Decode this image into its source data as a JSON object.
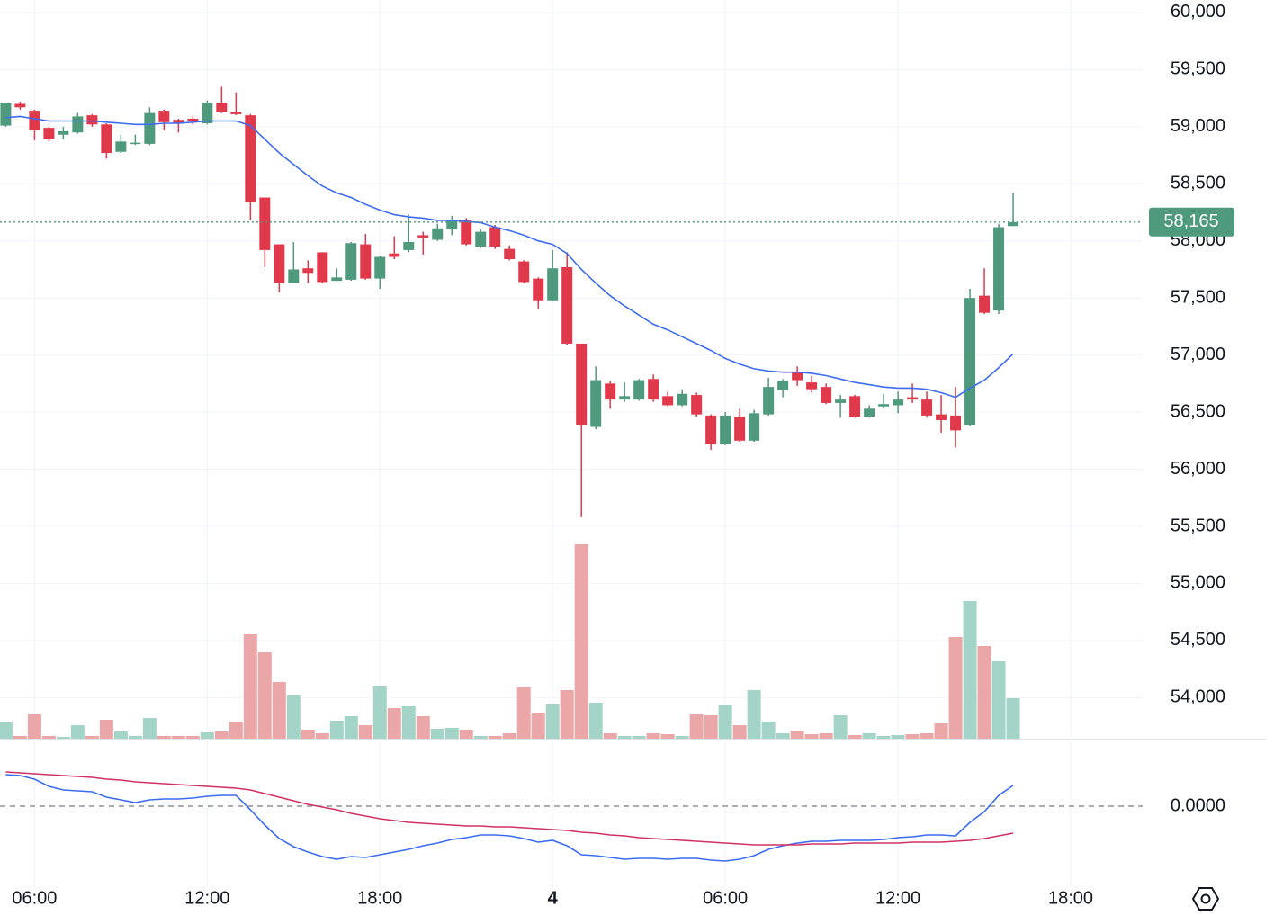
{
  "chart_data": [
    {
      "type": "candlestick",
      "x": [
        5,
        5.5,
        6,
        6.5,
        7,
        7.5,
        8,
        8.5,
        9,
        9.5,
        10,
        10.5,
        11,
        11.5,
        12,
        12.5,
        13,
        13.5,
        14,
        14.5,
        15,
        15.5,
        16,
        16.5,
        17,
        17.5,
        18,
        18.5,
        19,
        19.5,
        20,
        20.5,
        21,
        21.5,
        22,
        22.5,
        23,
        23.5,
        24,
        24.5,
        25,
        25.5,
        26,
        26.5,
        27,
        27.5,
        28,
        28.5,
        29,
        29.5,
        30,
        30.5,
        31,
        31.5,
        32,
        32.5,
        33,
        33.5,
        34,
        34.5,
        35,
        35.5,
        36,
        36.5,
        37,
        37.5,
        38,
        38.5,
        39,
        39.5,
        40
      ],
      "open": [
        59010,
        59200,
        59140,
        58990,
        58930,
        58950,
        59100,
        59020,
        58780,
        58850,
        58850,
        59140,
        59060,
        59070,
        59030,
        59210,
        59130,
        59100,
        58380,
        57970,
        57630,
        57760,
        57900,
        57650,
        57660,
        57970,
        57670,
        57890,
        57920,
        58050,
        58010,
        58100,
        58180,
        57950,
        58120,
        57930,
        57820,
        57670,
        57480,
        57770,
        57100,
        56370,
        56750,
        56610,
        56610,
        56790,
        56640,
        56560,
        56650,
        56470,
        56220,
        56460,
        56250,
        56480,
        56690,
        56850,
        56760,
        56720,
        56580,
        56640,
        56460,
        56550,
        56560,
        56630,
        56610,
        56480,
        56470,
        56390,
        57520,
        57390,
        58130
      ],
      "high": [
        59210,
        59220,
        59150,
        59000,
        59000,
        59120,
        59110,
        59030,
        58930,
        58930,
        59170,
        59150,
        59070,
        59090,
        59230,
        59350,
        59300,
        59110,
        58380,
        57970,
        57990,
        57830,
        57900,
        57760,
        57990,
        58060,
        57870,
        58040,
        58230,
        58080,
        58150,
        58220,
        58200,
        58100,
        58140,
        57960,
        57830,
        57680,
        57920,
        57900,
        57100,
        56900,
        56770,
        56760,
        56790,
        56830,
        56680,
        56700,
        56670,
        56480,
        56500,
        56530,
        56520,
        56800,
        56790,
        56900,
        56820,
        56750,
        56650,
        56650,
        56560,
        56660,
        56680,
        56750,
        56680,
        56650,
        56720,
        57580,
        57760,
        58150,
        58420
      ],
      "low": [
        59000,
        59150,
        58880,
        58870,
        58890,
        58940,
        59000,
        58720,
        58770,
        58840,
        58840,
        58970,
        58950,
        59020,
        59020,
        59120,
        59100,
        58180,
        57770,
        57550,
        57630,
        57630,
        57630,
        57650,
        57650,
        57660,
        57580,
        57840,
        57900,
        57880,
        58000,
        58050,
        57960,
        57940,
        57930,
        57830,
        57630,
        57400,
        57470,
        57090,
        55580,
        56350,
        56530,
        56590,
        56600,
        56590,
        56550,
        56550,
        56460,
        56170,
        56210,
        56240,
        56240,
        56470,
        56630,
        56730,
        56670,
        56570,
        56450,
        56450,
        56450,
        56530,
        56490,
        56580,
        56450,
        56320,
        56190,
        56380,
        57360,
        57360,
        58130
      ],
      "close": [
        59205,
        59170,
        58970,
        58890,
        58960,
        59090,
        59020,
        58770,
        58870,
        58860,
        59120,
        59040,
        59030,
        59050,
        59210,
        59130,
        59110,
        58340,
        57920,
        57630,
        57750,
        57720,
        57640,
        57680,
        57980,
        57670,
        57860,
        57860,
        57990,
        58030,
        58110,
        58180,
        57970,
        58080,
        57950,
        57840,
        57640,
        57480,
        57760,
        57100,
        56390,
        56780,
        56610,
        56640,
        56780,
        56610,
        56560,
        56660,
        56480,
        56220,
        56470,
        56250,
        56490,
        56720,
        56770,
        56780,
        56700,
        56580,
        56610,
        56460,
        56530,
        56570,
        56610,
        56610,
        56470,
        56430,
        56340,
        57500,
        57370,
        58120,
        58165
      ],
      "up_color": "#4f9a7d",
      "down_color": "#e0394b",
      "series": [
        {
          "color": "#3d6cf0",
          "values": [
            59080,
            59090,
            59070,
            59050,
            59050,
            59050,
            59050,
            59040,
            59030,
            59020,
            59020,
            59030,
            59030,
            59040,
            59050,
            59050,
            59050,
            59010,
            58890,
            58770,
            58670,
            58570,
            58480,
            58420,
            58380,
            58320,
            58270,
            58230,
            58210,
            58200,
            58180,
            58180,
            58170,
            58160,
            58120,
            58090,
            58050,
            58000,
            57970,
            57890,
            57750,
            57630,
            57520,
            57430,
            57350,
            57270,
            57220,
            57160,
            57100,
            57040,
            56970,
            56920,
            56880,
            56860,
            56850,
            56850,
            56840,
            56820,
            56790,
            56760,
            56740,
            56720,
            56710,
            56710,
            56700,
            56670,
            56630,
            56710,
            56780,
            56890,
            57010
          ]
        }
      ],
      "last_price": {
        "value": 58165,
        "label": "58,165"
      },
      "xlim": [
        4.8,
        44.5
      ],
      "ylim": [
        53640,
        60110
      ],
      "yticks": [
        {
          "value": 54000,
          "label": "54,000"
        },
        {
          "value": 54500,
          "label": "54,500"
        },
        {
          "value": 55000,
          "label": "55,000"
        },
        {
          "value": 55500,
          "label": "55,500"
        },
        {
          "value": 56000,
          "label": "56,000"
        },
        {
          "value": 56500,
          "label": "56,500"
        },
        {
          "value": 57000,
          "label": "57,000"
        },
        {
          "value": 57500,
          "label": "57,500"
        },
        {
          "value": 58000,
          "label": "58,000"
        },
        {
          "value": 58500,
          "label": "58,500"
        },
        {
          "value": 59000,
          "label": "59,000"
        },
        {
          "value": 59500,
          "label": "59,500"
        },
        {
          "value": 60000,
          "label": "60,000"
        }
      ],
      "grid": true
    },
    {
      "type": "bar",
      "values": [
        18,
        3,
        27,
        3,
        2,
        15,
        3,
        21,
        8,
        3,
        23,
        3,
        3,
        3,
        7,
        8,
        19,
        116,
        96,
        63,
        48,
        10,
        6,
        20,
        25,
        15,
        58,
        34,
        36,
        25,
        11,
        12,
        10,
        3,
        3,
        6,
        57,
        28,
        38,
        54,
        216,
        40,
        6,
        3,
        3,
        6,
        5,
        3,
        27,
        26,
        37,
        15,
        54,
        19,
        6,
        9,
        5,
        6,
        26,
        4,
        6,
        3,
        4,
        5,
        6,
        17,
        113,
        153,
        103,
        86,
        45
      ],
      "up_color": "#a4d4c8",
      "down_color": "#eba6a8",
      "ylim": [
        0,
        250
      ]
    },
    {
      "type": "line",
      "series": [
        {
          "color": "#3b6cf2",
          "values": [
            35,
            34,
            30,
            22,
            18,
            17,
            16,
            10,
            7,
            4,
            7,
            8,
            8,
            9,
            11,
            12,
            12,
            -4,
            -21,
            -36,
            -45,
            -51,
            -56,
            -59,
            -56,
            -57,
            -54,
            -51,
            -48,
            -44,
            -41,
            -37,
            -35,
            -32,
            -32,
            -33,
            -36,
            -40,
            -38,
            -44,
            -54,
            -55,
            -57,
            -59,
            -58,
            -58,
            -59,
            -58,
            -58,
            -60,
            -61,
            -59,
            -55,
            -48,
            -44,
            -41,
            -39,
            -39,
            -38,
            -38,
            -38,
            -37,
            -35,
            -34,
            -32,
            -32,
            -33,
            -18,
            -6,
            12,
            23
          ]
        },
        {
          "color": "#d23163",
          "values": [
            38,
            37,
            36,
            35,
            34,
            33,
            32,
            30,
            29,
            27,
            26,
            25,
            24,
            23,
            22,
            21,
            20,
            18,
            14,
            10,
            6,
            2,
            -1,
            -4,
            -8,
            -11,
            -14,
            -16,
            -18,
            -19,
            -20,
            -21,
            -22,
            -22,
            -23,
            -23,
            -24,
            -25,
            -26,
            -27,
            -29,
            -30,
            -32,
            -33,
            -35,
            -36,
            -37,
            -38,
            -39,
            -40,
            -41,
            -42,
            -43,
            -43,
            -43,
            -43,
            -42,
            -42,
            -42,
            -41,
            -41,
            -41,
            -41,
            -40,
            -40,
            -40,
            -39,
            -38,
            -36,
            -33,
            -30
          ]
        }
      ],
      "ylim": [
        -90,
        70
      ],
      "yticks": [
        {
          "value": 0,
          "label": "0.0000"
        }
      ],
      "xticks": [
        {
          "value": 6,
          "label": "06:00"
        },
        {
          "value": 12,
          "label": "12:00"
        },
        {
          "value": 18,
          "label": "18:00"
        },
        {
          "value": 24,
          "label": "4"
        },
        {
          "value": 30,
          "label": "06:00"
        },
        {
          "value": 36,
          "label": "12:00"
        },
        {
          "value": 42,
          "label": "18:00"
        }
      ]
    }
  ]
}
